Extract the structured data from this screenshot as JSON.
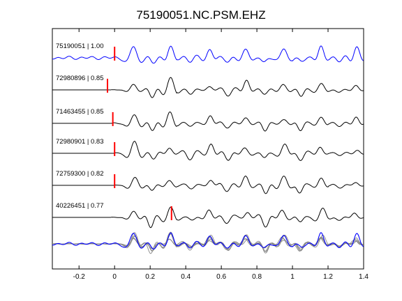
{
  "chart_data": {
    "type": "line",
    "title": "75190051.NC.PSM.EHZ",
    "xlabel": "",
    "ylabel": "",
    "xlim": [
      -0.35,
      1.4
    ],
    "x_ticks": [
      -0.2,
      0,
      0.2,
      0.4,
      0.6,
      0.8,
      1,
      1.2,
      1.4
    ],
    "x_tick_labels": [
      "-0.2",
      "0",
      "0.2",
      "0.4",
      "0.6",
      "0.8",
      "1",
      "1.2",
      "1.4"
    ],
    "grid": false,
    "series": [
      {
        "name": "75190051 | 1.00",
        "color": "#0000ff",
        "pick_time": 0.0,
        "sig": [
          0.02,
          1,
          3.1,
          0.4,
          0.3,
          0.35
        ],
        "env": [
          0.55,
          1.0,
          0.75,
          0.8,
          1.0,
          0.85
        ],
        "noise": 0.14,
        "start": -0.35
      },
      {
        "name": "72980896 | 0.85",
        "color": "#000000",
        "pick_time": -0.04,
        "sig": [
          0.06,
          3,
          1.7,
          0.8,
          0.2,
          0.5
        ],
        "env": [
          0.0,
          1.0,
          0.7,
          0.8,
          0.65,
          0.55
        ],
        "noise": 0.02,
        "start": -0.02
      },
      {
        "name": "71463455 | 0.85",
        "color": "#000000",
        "pick_time": -0.01,
        "sig": [
          0.11,
          2,
          2.5,
          0.7,
          0.5,
          0.6
        ],
        "env": [
          0.0,
          1.0,
          0.75,
          0.7,
          0.85,
          0.5
        ],
        "noise": 0.05,
        "start": -0.01
      },
      {
        "name": "72980901 | 0.83",
        "color": "#000000",
        "pick_time": 0.0,
        "sig": [
          0.15,
          1,
          1.3,
          0.5,
          0.4,
          0.3
        ],
        "env": [
          0.0,
          1.0,
          0.85,
          0.85,
          0.75,
          0.45
        ],
        "noise": 0.04,
        "start": 0.0
      },
      {
        "name": "72759300 | 0.82",
        "color": "#000000",
        "pick_time": 0.0,
        "sig": [
          0.2,
          2,
          0.6,
          0.9,
          0.3,
          0.7
        ],
        "env": [
          0.0,
          1.0,
          0.75,
          0.75,
          0.95,
          0.5
        ],
        "noise": 0.03,
        "start": 0.0
      },
      {
        "name": "40226451 | 0.77",
        "color": "#000000",
        "pick_time": 0.32,
        "sig": [
          0.24,
          3,
          2.2,
          0.6,
          0.6,
          0.4
        ],
        "env": [
          0.0,
          1.0,
          0.8,
          0.8,
          0.9,
          0.6
        ],
        "noise": 0.02,
        "start": -0.02
      }
    ],
    "stack": {
      "colors": [
        "#888888",
        "#0000ff"
      ]
    }
  }
}
